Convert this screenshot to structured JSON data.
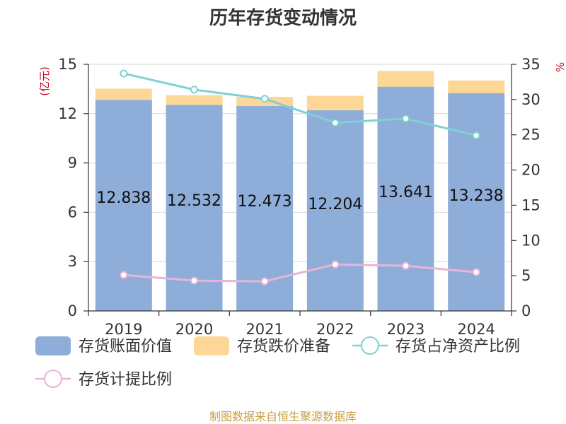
{
  "chart_data": {
    "type": "bar",
    "title": "历年存货变动情况",
    "left_axis_unit": "(亿元)",
    "right_axis_unit": "%",
    "categories": [
      "2019",
      "2020",
      "2021",
      "2022",
      "2023",
      "2024"
    ],
    "ylim_left": [
      0,
      15
    ],
    "yticks_left": [
      0,
      3,
      6,
      9,
      12,
      15
    ],
    "ylim_right": [
      0,
      35
    ],
    "yticks_right": [
      0,
      5,
      10,
      15,
      20,
      25,
      30,
      35
    ],
    "grid": true,
    "legend_position": "bottom",
    "series": [
      {
        "name": "存货账面价值",
        "kind": "bar",
        "axis": "left",
        "color": "#8eadd9",
        "values": [
          12.838,
          12.532,
          12.473,
          12.204,
          13.641,
          13.238
        ],
        "labels": [
          "12.838",
          "12.532",
          "12.473",
          "12.204",
          "13.641",
          "13.238"
        ]
      },
      {
        "name": "存货跌价准备",
        "kind": "bar-stacked",
        "axis": "left",
        "color": "#fdd798",
        "values": [
          0.68,
          0.59,
          0.55,
          0.88,
          0.95,
          0.78
        ]
      },
      {
        "name": "存货占净资产比例",
        "kind": "line",
        "axis": "right",
        "color": "#7fd1d3",
        "values": [
          33.7,
          31.4,
          30.1,
          26.7,
          27.3,
          24.9
        ]
      },
      {
        "name": "存货计提比例",
        "kind": "line",
        "axis": "right",
        "color": "#e8b4d8",
        "values": [
          5.1,
          4.3,
          4.2,
          6.6,
          6.4,
          5.5
        ]
      }
    ]
  },
  "footer": {
    "source": "制图数据来自恒生聚源数据库"
  }
}
